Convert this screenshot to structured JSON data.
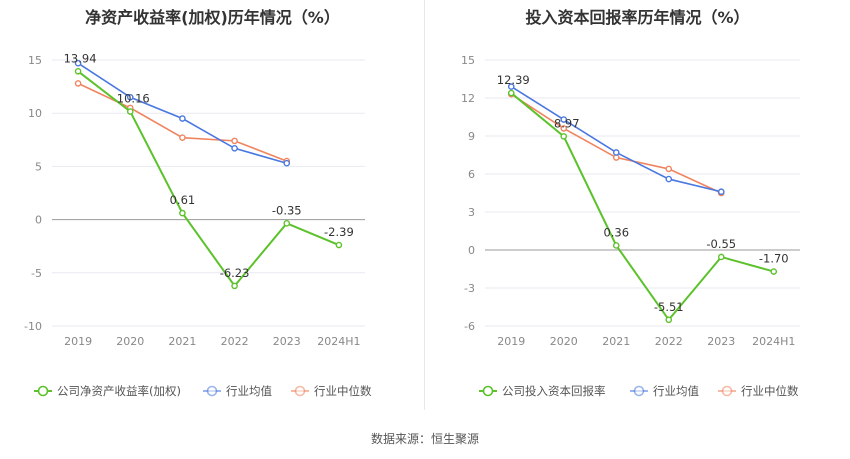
{
  "source_text": "数据来源：恒生聚源",
  "colors": {
    "company": "#5cc22b",
    "industry_avg": "#4a78e0",
    "industry_median": "#f0845f"
  },
  "chart_data": [
    {
      "type": "line",
      "title": "净资产收益率(加权)历年情况（%）",
      "categories": [
        "2019",
        "2020",
        "2021",
        "2022",
        "2023",
        "2024H1"
      ],
      "ylim": [
        -10,
        15
      ],
      "yticks": [
        15,
        10,
        5,
        0,
        -5,
        -10
      ],
      "grid": true,
      "legend_position": "bottom",
      "series": [
        {
          "name": "公司净资产收益率(加权)",
          "key": "company",
          "values": [
            13.94,
            10.16,
            0.61,
            -6.23,
            -0.35,
            -2.39
          ],
          "labels": [
            "13.94",
            "10.16",
            "0.61",
            "-6.23",
            "-0.35",
            "-2.39"
          ]
        },
        {
          "name": "行业均值",
          "key": "industry_avg",
          "values": [
            14.7,
            11.5,
            9.5,
            6.7,
            5.3,
            null
          ]
        },
        {
          "name": "行业中位数",
          "key": "industry_median",
          "values": [
            12.8,
            10.5,
            7.7,
            7.4,
            5.5,
            null
          ]
        }
      ]
    },
    {
      "type": "line",
      "title": "投入资本回报率历年情况（%）",
      "categories": [
        "2019",
        "2020",
        "2021",
        "2022",
        "2023",
        "2024H1"
      ],
      "ylim": [
        -6,
        15
      ],
      "yticks": [
        15,
        12,
        9,
        6,
        3,
        0,
        -3,
        -6
      ],
      "grid": true,
      "legend_position": "bottom",
      "series": [
        {
          "name": "公司投入资本回报率",
          "key": "company",
          "values": [
            12.39,
            8.97,
            0.36,
            -5.51,
            -0.55,
            -1.7
          ],
          "labels": [
            "12.39",
            "8.97",
            "0.36",
            "-5.51",
            "-0.55",
            "-1.70"
          ]
        },
        {
          "name": "行业均值",
          "key": "industry_avg",
          "values": [
            12.9,
            10.3,
            7.7,
            5.6,
            4.6,
            null
          ]
        },
        {
          "name": "行业中位数",
          "key": "industry_median",
          "values": [
            12.3,
            9.6,
            7.3,
            6.4,
            4.5,
            null
          ]
        }
      ]
    }
  ]
}
